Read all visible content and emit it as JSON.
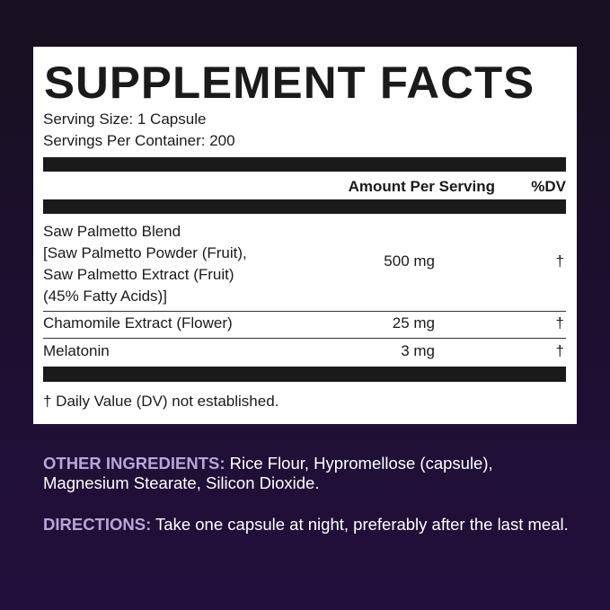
{
  "label": {
    "title": "SUPPLEMENT FACTS",
    "serving_size": "Serving Size: 1 Capsule",
    "servings_per_container": "Servings Per Container: 200",
    "header_amount": "Amount Per Serving",
    "header_dv": "%DV",
    "rows": [
      {
        "name_lines": [
          "Saw Palmetto Blend",
          "[Saw Palmetto Powder (Fruit),",
          "Saw Palmetto Extract (Fruit)",
          "(45% Fatty Acids)]"
        ],
        "amount": "500 mg",
        "dv": "†"
      },
      {
        "name": "Chamomile Extract (Flower)",
        "amount": "25 mg",
        "dv": "†"
      },
      {
        "name": "Melatonin",
        "amount": "3 mg",
        "dv": "†"
      }
    ],
    "footnote": "† Daily Value (DV) not established."
  },
  "other_ingredients": {
    "label": "OTHER INGREDIENTS:",
    "text": " Rice Flour, Hypromellose (capsule), Magnesium Stearate, Silicon Dioxide."
  },
  "directions": {
    "label": "DIRECTIONS:",
    "text": " Take one capsule at night, preferably after the last meal."
  },
  "colors": {
    "background": "#1d0f30",
    "accent": "#b9a6d9",
    "panel": "#ffffff"
  }
}
